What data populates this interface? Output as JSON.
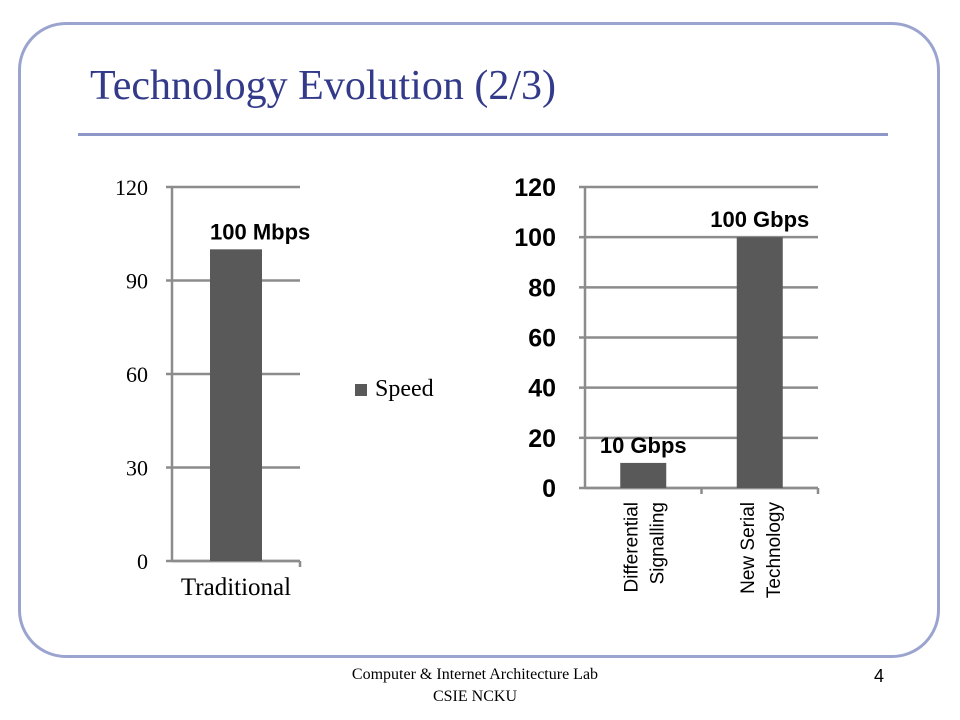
{
  "slide": {
    "title": "Technology Evolution (2/3)",
    "footer_line1": "Computer & Internet Architecture Lab",
    "footer_line2": "CSIE NCKU",
    "page_number": "4"
  },
  "colors": {
    "frame": "#9aa4cf",
    "title": "#333a8a",
    "bar": "#595959",
    "grid": "#8c8c8c"
  },
  "chart_data": [
    {
      "type": "bar",
      "categories": [
        "Traditional"
      ],
      "series": [
        {
          "name": "Speed",
          "values": [
            100
          ]
        }
      ],
      "data_labels": [
        "100 Mbps"
      ],
      "ylim": [
        0,
        120
      ],
      "yticks": [
        0,
        30,
        60,
        90,
        120
      ],
      "grid": true,
      "legend": "right",
      "xlabel": "",
      "ylabel": ""
    },
    {
      "type": "bar",
      "categories": [
        "Differential Signalling",
        "New Serial Technology"
      ],
      "category_label_lines": [
        [
          "Differential",
          "Signalling"
        ],
        [
          "New Serial",
          "Technology"
        ]
      ],
      "series": [
        {
          "values": [
            10,
            100
          ]
        }
      ],
      "data_labels": [
        "10 Gbps",
        "100 Gbps"
      ],
      "ylim": [
        0,
        120
      ],
      "yticks": [
        0,
        20,
        40,
        60,
        80,
        100,
        120
      ],
      "grid": true,
      "xlabel": "",
      "ylabel": ""
    }
  ]
}
